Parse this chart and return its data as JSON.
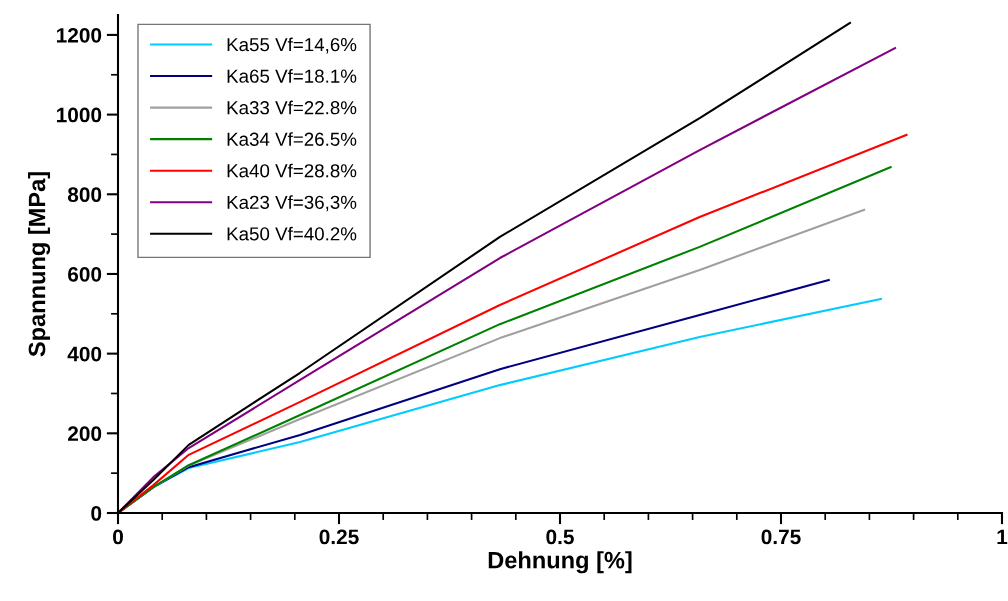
{
  "chart_data": {
    "type": "line",
    "xlabel": "Dehnung [%]",
    "ylabel": "Spannung [MPa]",
    "xlim": [
      0,
      1
    ],
    "ylim": [
      0,
      1250
    ],
    "xticks": [
      0,
      {
        "value": 0.25,
        "label": "0.25"
      },
      {
        "value": 0.5,
        "label": "0.5"
      },
      {
        "value": 0.75,
        "label": "0.75"
      },
      1
    ],
    "yticks": [
      0,
      200,
      400,
      600,
      800,
      1000,
      1200
    ],
    "grid": false,
    "legend": "top left",
    "marker": "none",
    "line_style": "solid",
    "series": [
      {
        "name": "Ka55 Vf=14,6%",
        "color": "#00ccff",
        "x": [
          0,
          0.04,
          0.08,
          0.206,
          0.432,
          0.658,
          0.863
        ],
        "values": [
          0,
          65,
          113,
          178,
          321,
          442,
          537
        ]
      },
      {
        "name": "Ka65 Vf=18.1%",
        "color": "#000080",
        "x": [
          0,
          0.04,
          0.08,
          0.206,
          0.432,
          0.658,
          0.804
        ],
        "values": [
          0,
          65,
          115,
          196,
          361,
          497,
          585
        ]
      },
      {
        "name": "Ka33 Vf=22.8%",
        "color": "#a0a0a0",
        "x": [
          0,
          0.04,
          0.08,
          0.206,
          0.432,
          0.658,
          0.844
        ],
        "values": [
          0,
          65,
          119,
          236,
          439,
          610,
          761
        ]
      },
      {
        "name": "Ka34 Vf=26.5%",
        "color": "#008000",
        "x": [
          0,
          0.04,
          0.08,
          0.206,
          0.432,
          0.658,
          0.874
        ],
        "values": [
          0,
          65,
          120,
          246,
          474,
          668,
          868
        ]
      },
      {
        "name": "Ka40 Vf=28.8%",
        "color": "#ff0000",
        "x": [
          0,
          0.04,
          0.08,
          0.206,
          0.432,
          0.658,
          0.892
        ],
        "values": [
          0,
          70,
          146,
          279,
          522,
          743,
          949
        ]
      },
      {
        "name": "Ka23 Vf=36,3%",
        "color": "#800080",
        "x": [
          0,
          0.04,
          0.08,
          0.206,
          0.432,
          0.658,
          0.879
        ],
        "values": [
          0,
          90,
          163,
          334,
          640,
          911,
          1167
        ]
      },
      {
        "name": "Ka50 Vf=40.2%",
        "color": "#000000",
        "x": [
          0,
          0.04,
          0.08,
          0.206,
          0.432,
          0.658,
          0.828
        ],
        "values": [
          0,
          83,
          171,
          352,
          693,
          991,
          1230
        ]
      }
    ]
  }
}
